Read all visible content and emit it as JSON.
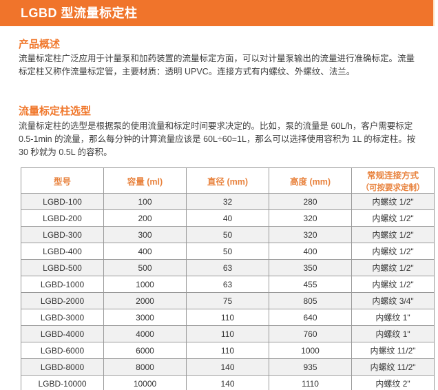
{
  "page": {
    "title": "LGBD 型流量标定柱",
    "accent_color": "#f0742b",
    "stripe_color": "#f1f1f1",
    "border_color": "#999999"
  },
  "sections": [
    {
      "heading": "产品概述",
      "body": "流量标定柱广泛应用于计量泵和加药装置的流量标定方面，可以对计量泵输出的流量进行准确标定。流量标定柱又称作流量标定管，主要材质：透明 UPVC。连接方式有内螺纹、外螺纹、法兰。"
    },
    {
      "heading": "流量标定柱选型",
      "body": "流量标定柱的选型是根据泵的使用流量和标定时间要求决定的。比如，泵的流量是 60L/h，客户需要标定 0.5-1min 的流量，那么每分钟的计算流量应该是 60L÷60=1L，那么可以选择使用容积为 1L 的标定柱。按 30 秒就为 0.5L 的容积。"
    }
  ],
  "table": {
    "headers": [
      {
        "label": "型号"
      },
      {
        "label": "容量 (ml)"
      },
      {
        "label": "直径 (mm)"
      },
      {
        "label": "高度 (mm)"
      },
      {
        "label": "常规连接方式",
        "sublabel": "（可按要求定制）"
      }
    ],
    "rows": [
      [
        "LGBD-100",
        "100",
        "32",
        "280",
        "内螺纹 1/2\""
      ],
      [
        "LGBD-200",
        "200",
        "40",
        "320",
        "内螺纹 1/2\""
      ],
      [
        "LGBD-300",
        "300",
        "50",
        "320",
        "内螺纹 1/2\""
      ],
      [
        "LGBD-400",
        "400",
        "50",
        "400",
        "内螺纹 1/2\""
      ],
      [
        "LGBD-500",
        "500",
        "63",
        "350",
        "内螺纹 1/2\""
      ],
      [
        "LGBD-1000",
        "1000",
        "63",
        "455",
        "内螺纹 1/2\""
      ],
      [
        "LGBD-2000",
        "2000",
        "75",
        "805",
        "内螺纹 3/4\""
      ],
      [
        "LGBD-3000",
        "3000",
        "110",
        "640",
        "内螺纹 1\""
      ],
      [
        "LGBD-4000",
        "4000",
        "110",
        "760",
        "内螺纹 1\""
      ],
      [
        "LGBD-6000",
        "6000",
        "110",
        "1000",
        "内螺纹 11/2\""
      ],
      [
        "LGBD-8000",
        "8000",
        "140",
        "935",
        "内螺纹 11/2\""
      ],
      [
        "LGBD-10000",
        "10000",
        "140",
        "1110",
        "内螺纹 2\""
      ]
    ]
  }
}
